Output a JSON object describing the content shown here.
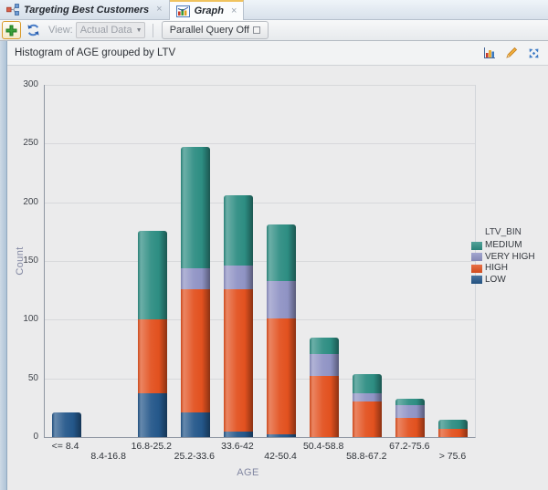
{
  "tabs": [
    {
      "label": "Targeting Best Customers",
      "icon": "workflow-icon",
      "active": false
    },
    {
      "label": "Graph",
      "icon": "chart-icon",
      "active": true
    }
  ],
  "toolbar": {
    "view_label": "View:",
    "view_value": "Actual Data",
    "parallel_query_label": "Parallel Query Off"
  },
  "panel": {
    "title": "Histogram of AGE grouped by LTV"
  },
  "icons": {
    "tab1": "workflow-icon",
    "tab2": "chart-icon",
    "tab_close": "close-icon",
    "toolbar_add": "add-plus-icon",
    "toolbar_refresh": "refresh-icon",
    "combo_arrow": "chevron-down-icon",
    "header_1": "chart-type-icon",
    "header_2": "pencil-icon",
    "header_3": "detach-icon"
  },
  "chart_data": {
    "type": "bar",
    "stacked": true,
    "title": "Histogram of AGE grouped by LTV",
    "xlabel": "AGE",
    "ylabel": "Count",
    "ylim": [
      0,
      300
    ],
    "ytick_step": 50,
    "yticks": [
      0,
      50,
      100,
      150,
      200,
      250,
      300
    ],
    "grid": true,
    "legend_title": "LTV_BIN",
    "legend_position": "right",
    "legend_order": [
      "MEDIUM",
      "VERY HIGH",
      "HIGH",
      "LOW"
    ],
    "categories": [
      "<= 8.4",
      "8.4-16.8",
      "16.8-25.2",
      "25.2-33.6",
      "33.6-42",
      "42-50.4",
      "50.4-58.8",
      "58.8-67.2",
      "67.2-75.6",
      "> 75.6"
    ],
    "series": [
      {
        "name": "LOW",
        "color": "#24578a",
        "values": [
          21,
          0,
          37,
          21,
          5,
          2,
          0,
          0,
          0,
          0
        ]
      },
      {
        "name": "HIGH",
        "color": "#e2511f",
        "values": [
          0,
          0,
          63,
          105,
          121,
          99,
          52,
          30,
          16,
          7
        ]
      },
      {
        "name": "VERY HIGH",
        "color": "#8f93c4",
        "values": [
          0,
          0,
          0,
          18,
          20,
          32,
          19,
          7,
          11,
          0
        ]
      },
      {
        "name": "MEDIUM",
        "color": "#2d8d82",
        "values": [
          0,
          0,
          76,
          103,
          60,
          48,
          14,
          17,
          6,
          8
        ]
      }
    ]
  }
}
